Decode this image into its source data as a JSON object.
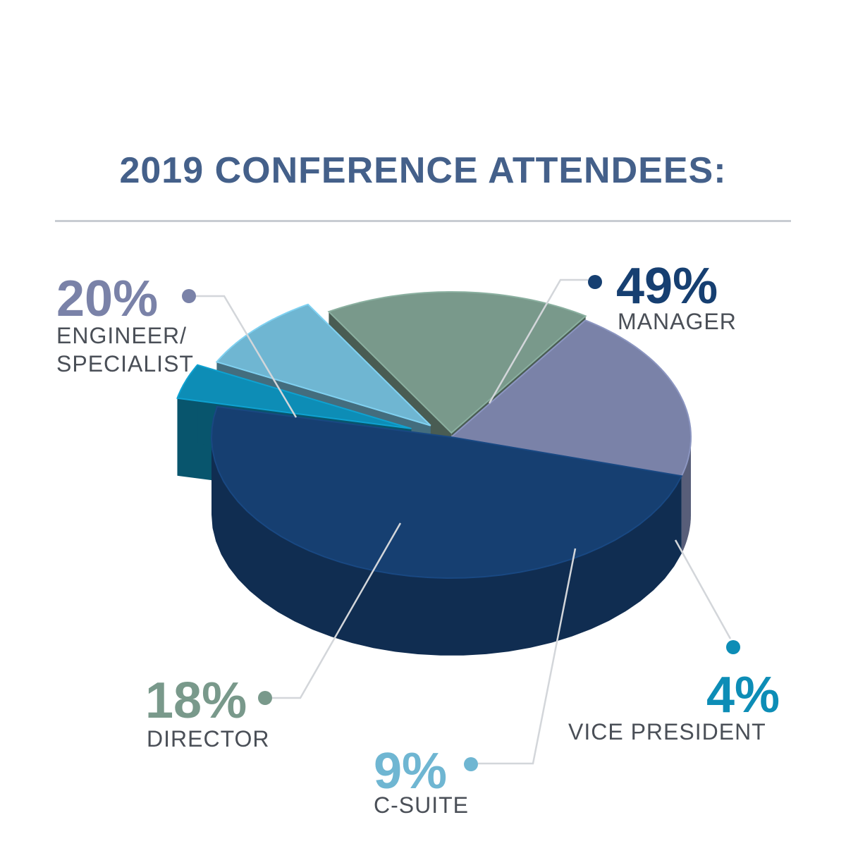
{
  "title": "2019 CONFERENCE ATTENDEES:",
  "chart_data": {
    "type": "pie",
    "style": "3d exploded",
    "title": "2019 CONFERENCE ATTENDEES:",
    "categories": [
      "MANAGER",
      "VICE PRESIDENT",
      "C-SUITE",
      "DIRECTOR",
      "ENGINEER/ SPECIALIST"
    ],
    "values": [
      49,
      4,
      9,
      18,
      20
    ],
    "unit": "%",
    "labels": [
      {
        "pct": "49%",
        "name": "MANAGER",
        "color": "#163f71"
      },
      {
        "pct": "4%",
        "name": "VICE PRESIDENT",
        "color": "#0d8db6"
      },
      {
        "pct": "9%",
        "name": "C-SUITE",
        "color": "#6fb6d2"
      },
      {
        "pct": "18%",
        "name": "DIRECTOR",
        "color": "#79998b"
      },
      {
        "pct": "20%",
        "name": "ENGINEER/ SPECIALIST",
        "color": "#7a82a8"
      }
    ],
    "legend": "callout labels around pie"
  }
}
